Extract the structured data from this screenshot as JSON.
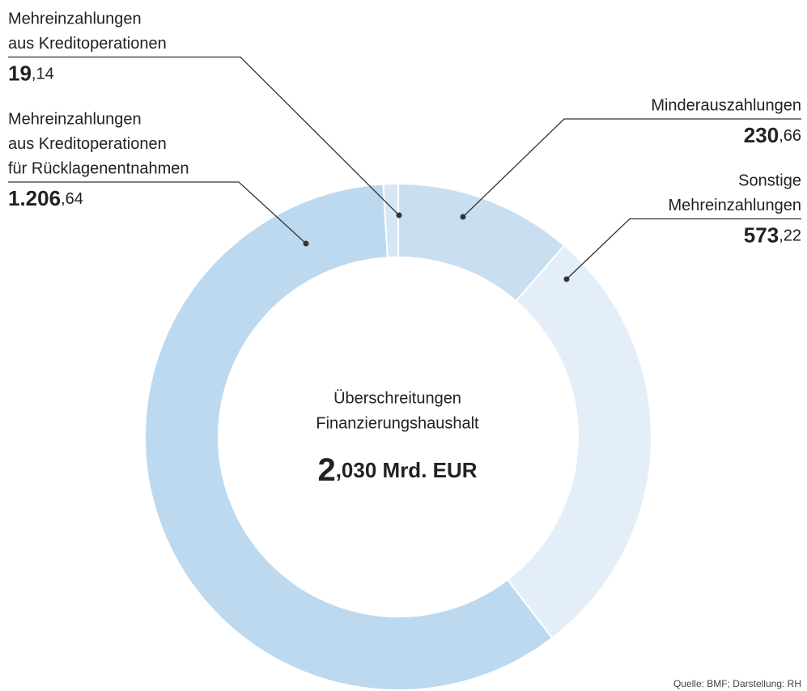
{
  "chart_data": {
    "type": "donut",
    "center_label": [
      "Überschreitungen",
      "Finanzierungshaushalt"
    ],
    "total_label": "2,030 Mrd. EUR",
    "categories": [
      [
        "Minderauszahlungen"
      ],
      [
        "Sonstige",
        "Mehreinzahlungen"
      ],
      [
        "Mehreinzahlungen",
        "aus Kreditoperationen",
        "für Rücklagenentnahmen"
      ],
      [
        "Mehreinzahlungen",
        "aus Kreditoperationen"
      ]
    ],
    "values": [
      230.66,
      573.22,
      1206.64,
      19.14
    ],
    "value_labels": [
      "230,66",
      "573,22",
      "1.206,64",
      "19,14"
    ],
    "colors": [
      "#c9dff1",
      "#e3eef9",
      "#bcd9ef",
      "#d5e6f4"
    ],
    "source": "Quelle: BMF; Darstellung: RH"
  }
}
